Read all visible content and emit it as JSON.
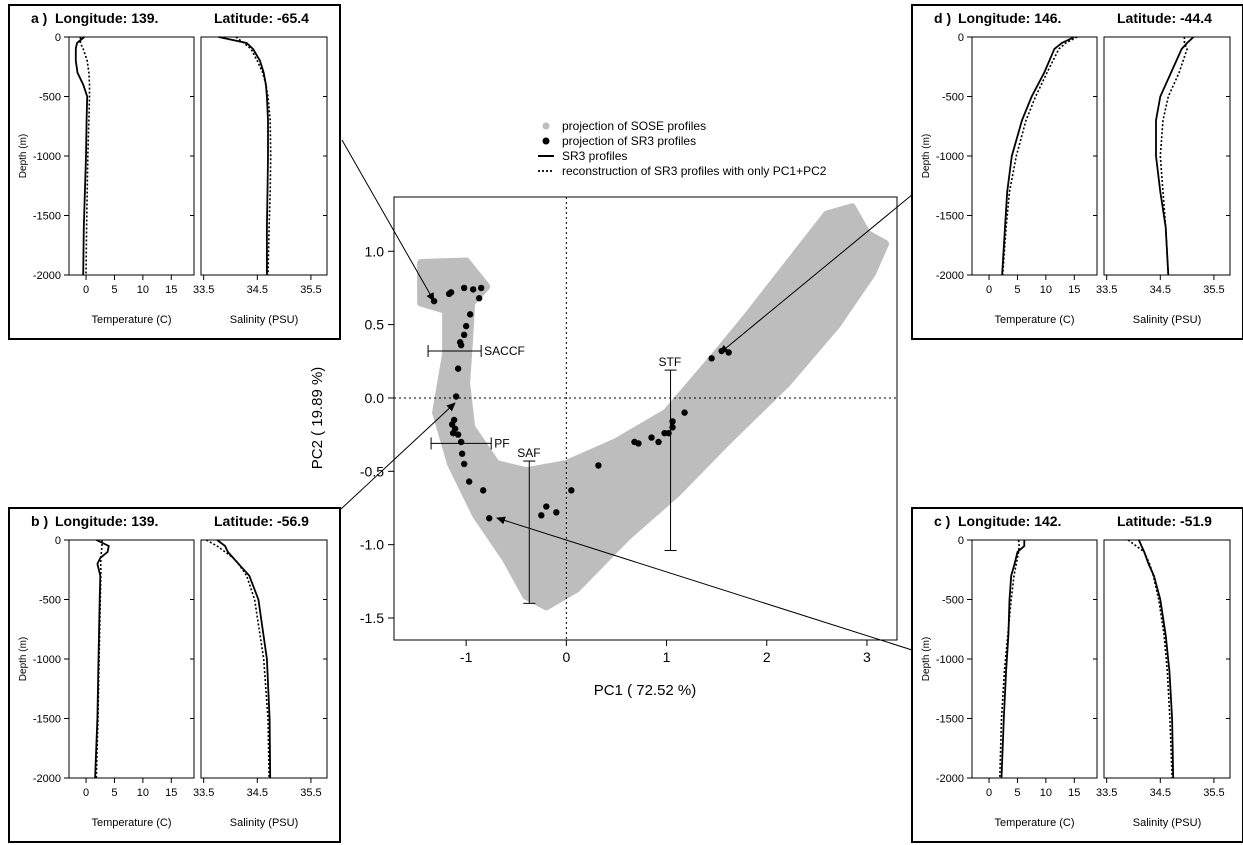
{
  "chart_data": [
    {
      "id": "main",
      "type": "scatter",
      "xlabel": "PC1 ( 72.52  %)",
      "ylabel": "PC2 ( 19.89  %)",
      "xlim": [
        -1.72,
        3.3
      ],
      "ylim": [
        -1.65,
        1.37
      ],
      "x_ticks": [
        -1,
        0,
        1,
        2,
        3
      ],
      "y_ticks": [
        1.0,
        0.5,
        0.0,
        -0.5,
        -1.0,
        -1.5
      ],
      "x_tick_labels": [
        "-1",
        "0",
        "1",
        "2",
        "3"
      ],
      "y_tick_labels": [
        "1.0",
        "0.5",
        "0.0",
        "-0.5",
        "-1.0",
        "-1.5"
      ],
      "reference_lines": {
        "x": 0,
        "y": 0,
        "style": "dotted"
      },
      "legend": {
        "placement": "above-plot",
        "entries": [
          {
            "label": "projection of SOSE profiles",
            "symbol": "gray-dot",
            "color": "#bdbdbd"
          },
          {
            "label": "projection of SR3 profiles",
            "symbol": "black-dot",
            "color": "#000000"
          },
          {
            "label": "SR3 profiles",
            "symbol": "solid-line"
          },
          {
            "label": "reconstruction of SR3 profiles with only PC1+PC2",
            "symbol": "dotted-line"
          }
        ]
      },
      "sose_cloud_outline": [
        [
          -1.45,
          0.92
        ],
        [
          -1.0,
          0.93
        ],
        [
          -0.8,
          0.76
        ],
        [
          -0.95,
          0.65
        ],
        [
          -0.97,
          0.4
        ],
        [
          -1.0,
          0.1
        ],
        [
          -0.95,
          -0.2
        ],
        [
          -0.7,
          -0.45
        ],
        [
          -0.4,
          -0.5
        ],
        [
          0.0,
          -0.45
        ],
        [
          0.5,
          -0.3
        ],
        [
          1.0,
          -0.1
        ],
        [
          1.5,
          0.3
        ],
        [
          1.8,
          0.55
        ],
        [
          2.2,
          0.9
        ],
        [
          2.6,
          1.25
        ],
        [
          2.85,
          1.3
        ],
        [
          3.0,
          1.12
        ],
        [
          3.18,
          1.05
        ],
        [
          3.05,
          0.85
        ],
        [
          2.7,
          0.5
        ],
        [
          2.2,
          0.1
        ],
        [
          1.6,
          -0.3
        ],
        [
          1.1,
          -0.65
        ],
        [
          0.6,
          -0.95
        ],
        [
          0.1,
          -1.3
        ],
        [
          -0.2,
          -1.42
        ],
        [
          -0.4,
          -1.35
        ],
        [
          -0.6,
          -1.1
        ],
        [
          -0.9,
          -0.8
        ],
        [
          -1.15,
          -0.45
        ],
        [
          -1.3,
          -0.1
        ],
        [
          -1.2,
          0.3
        ],
        [
          -1.2,
          0.6
        ],
        [
          -1.45,
          0.65
        ]
      ],
      "sr3_points": [
        [
          -1.32,
          0.66
        ],
        [
          -1.17,
          0.71
        ],
        [
          -1.15,
          0.72
        ],
        [
          -1.02,
          0.75
        ],
        [
          -0.93,
          0.74
        ],
        [
          -0.85,
          0.75
        ],
        [
          -0.87,
          0.68
        ],
        [
          -0.96,
          0.57
        ],
        [
          -1.0,
          0.49
        ],
        [
          -1.02,
          0.43
        ],
        [
          -1.05,
          0.36
        ],
        [
          -1.06,
          0.38
        ],
        [
          -1.08,
          0.2
        ],
        [
          -1.1,
          0.01
        ],
        [
          -1.12,
          -0.15
        ],
        [
          -1.14,
          -0.18
        ],
        [
          -1.11,
          -0.21
        ],
        [
          -1.13,
          -0.24
        ],
        [
          -1.08,
          -0.25
        ],
        [
          -1.05,
          -0.3
        ],
        [
          -1.04,
          -0.38
        ],
        [
          -1.02,
          -0.45
        ],
        [
          -0.97,
          -0.57
        ],
        [
          -0.83,
          -0.63
        ],
        [
          -0.77,
          -0.82
        ],
        [
          -0.25,
          -0.8
        ],
        [
          -0.2,
          -0.74
        ],
        [
          -0.1,
          -0.78
        ],
        [
          0.05,
          -0.63
        ],
        [
          0.32,
          -0.46
        ],
        [
          0.68,
          -0.3
        ],
        [
          0.72,
          -0.31
        ],
        [
          0.85,
          -0.27
        ],
        [
          0.92,
          -0.3
        ],
        [
          0.98,
          -0.24
        ],
        [
          1.02,
          -0.24
        ],
        [
          1.06,
          -0.2
        ],
        [
          1.06,
          -0.16
        ],
        [
          1.18,
          -0.1
        ],
        [
          1.45,
          0.27
        ],
        [
          1.55,
          0.32
        ],
        [
          1.62,
          0.31
        ]
      ],
      "fronts": [
        {
          "name": "SACCF",
          "orientation": "horizontal",
          "x": [
            -1.38,
            -0.85
          ],
          "y": 0.32
        },
        {
          "name": "PF",
          "orientation": "horizontal",
          "x": [
            -1.35,
            -0.75
          ],
          "y": -0.31
        },
        {
          "name": "SAF",
          "orientation": "vertical",
          "x": -0.37,
          "y": [
            -1.4,
            -0.43
          ]
        },
        {
          "name": "STF",
          "orientation": "vertical",
          "x": 1.04,
          "y": [
            -1.04,
            0.19
          ]
        }
      ]
    },
    {
      "id": "a",
      "type": "line",
      "panel_label": "a )",
      "title_longitude": "Longitude: 139.",
      "title_latitude": "Latitude: -65.4",
      "ylabel": "Depth (m)",
      "depth": [
        0,
        -50,
        -100,
        -200,
        -300,
        -400,
        -500,
        -700,
        -1000,
        -1300,
        -1600,
        -2000
      ],
      "temperature": {
        "xlabel": "Temperature (C)",
        "xlim": [
          -3,
          19
        ],
        "x_ticks": [
          0,
          5,
          10,
          15
        ],
        "x_tick_labels": [
          "0",
          "5",
          "10",
          "15"
        ],
        "observed": [
          -0.3,
          -1.6,
          -1.8,
          -1.8,
          -1.5,
          -0.5,
          0.2,
          0.1,
          0.0,
          -0.2,
          -0.4,
          -0.5
        ],
        "reconstructed": [
          -1.0,
          -1.0,
          -0.5,
          0.2,
          0.5,
          0.6,
          0.6,
          0.5,
          0.3,
          0.2,
          0.1,
          0.0
        ]
      },
      "salinity": {
        "xlabel": "Salinity (PSU)",
        "xlim": [
          33.45,
          35.8
        ],
        "x_ticks": [
          33.5,
          34.5,
          35.5
        ],
        "x_tick_labels": [
          "33.5",
          "34.5",
          "35.5"
        ],
        "observed": [
          33.78,
          34.3,
          34.42,
          34.55,
          34.62,
          34.66,
          34.68,
          34.7,
          34.7,
          34.69,
          34.68,
          34.68
        ],
        "reconstructed": [
          34.1,
          34.25,
          34.38,
          34.5,
          34.6,
          34.66,
          34.7,
          34.74,
          34.75,
          34.74,
          34.72,
          34.7
        ]
      }
    },
    {
      "id": "b",
      "type": "line",
      "panel_label": "b )",
      "title_longitude": "Longitude: 139.",
      "title_latitude": "Latitude: -56.9",
      "ylabel": "Depth (m)",
      "depth": [
        0,
        -50,
        -100,
        -150,
        -200,
        -300,
        -500,
        -1000,
        -1500,
        -2000
      ],
      "temperature": {
        "xlabel": "Temperature (C)",
        "xlim": [
          -3,
          19
        ],
        "x_ticks": [
          0,
          5,
          10,
          15
        ],
        "x_tick_labels": [
          "0",
          "5",
          "10",
          "15"
        ],
        "observed": [
          1.8,
          4.0,
          3.8,
          2.5,
          2.0,
          2.5,
          2.4,
          2.2,
          2.0,
          1.6
        ],
        "reconstructed": [
          2.8,
          2.8,
          2.7,
          2.6,
          2.6,
          2.6,
          2.5,
          2.3,
          2.1,
          1.8
        ]
      },
      "salinity": {
        "xlabel": "Salinity (PSU)",
        "xlim": [
          33.45,
          35.8
        ],
        "x_ticks": [
          33.5,
          34.5,
          35.5
        ],
        "x_tick_labels": [
          "33.5",
          "34.5",
          "35.5"
        ],
        "observed": [
          33.75,
          33.9,
          33.95,
          34.05,
          34.15,
          34.35,
          34.52,
          34.68,
          34.73,
          34.74
        ],
        "reconstructed": [
          33.55,
          33.75,
          33.9,
          34.05,
          34.15,
          34.3,
          34.45,
          34.62,
          34.7,
          34.72
        ]
      }
    },
    {
      "id": "c",
      "type": "line",
      "panel_label": "c )",
      "title_longitude": "Longitude: 142.",
      "title_latitude": "Latitude: -51.9",
      "ylabel": "Depth (m)",
      "depth": [
        0,
        -50,
        -100,
        -200,
        -300,
        -500,
        -800,
        -1100,
        -1500,
        -2000
      ],
      "temperature": {
        "xlabel": "Temperature (C)",
        "xlim": [
          -3,
          19
        ],
        "x_ticks": [
          0,
          5,
          10,
          15
        ],
        "x_tick_labels": [
          "0",
          "5",
          "10",
          "15"
        ],
        "observed": [
          6.2,
          6.2,
          5.0,
          4.5,
          3.9,
          3.6,
          3.4,
          3.0,
          2.6,
          2.2
        ],
        "reconstructed": [
          5.2,
          5.3,
          5.2,
          4.8,
          4.4,
          3.9,
          3.3,
          2.7,
          2.2,
          1.9
        ]
      },
      "salinity": {
        "xlabel": "Salinity (PSU)",
        "xlim": [
          33.45,
          35.8
        ],
        "x_ticks": [
          33.5,
          34.5,
          35.5
        ],
        "x_tick_labels": [
          "33.5",
          "34.5",
          "35.5"
        ],
        "observed": [
          34.1,
          34.15,
          34.2,
          34.28,
          34.38,
          34.5,
          34.6,
          34.67,
          34.72,
          34.74
        ],
        "reconstructed": [
          33.9,
          34.05,
          34.2,
          34.3,
          34.37,
          34.47,
          34.57,
          34.63,
          34.68,
          34.72
        ]
      }
    },
    {
      "id": "d",
      "type": "line",
      "panel_label": "d )",
      "title_longitude": "Longitude: 146.",
      "title_latitude": "Latitude: -44.4",
      "ylabel": "Depth (m)",
      "depth": [
        0,
        -50,
        -100,
        -300,
        -500,
        -700,
        -1000,
        -1300,
        -1600,
        -2000
      ],
      "temperature": {
        "xlabel": "Temperature (C)",
        "xlim": [
          -3,
          19
        ],
        "x_ticks": [
          0,
          5,
          10,
          15
        ],
        "x_tick_labels": [
          "0",
          "5",
          "10",
          "15"
        ],
        "observed": [
          15.0,
          12.8,
          11.5,
          9.7,
          7.5,
          5.8,
          4.0,
          3.2,
          2.8,
          2.3
        ],
        "reconstructed": [
          15.5,
          13.5,
          12.3,
          10.2,
          8.2,
          6.5,
          4.8,
          3.6,
          3.0,
          2.4
        ]
      },
      "salinity": {
        "xlabel": "Salinity (PSU)",
        "xlim": [
          33.45,
          35.8
        ],
        "x_ticks": [
          33.5,
          34.5,
          35.5
        ],
        "x_tick_labels": [
          "33.5",
          "34.5",
          "35.5"
        ],
        "observed": [
          35.12,
          35.0,
          34.9,
          34.7,
          34.5,
          34.42,
          34.42,
          34.5,
          34.6,
          34.65
        ],
        "reconstructed": [
          34.95,
          34.95,
          35.0,
          34.85,
          34.65,
          34.55,
          34.5,
          34.55,
          34.6,
          34.65
        ]
      }
    }
  ],
  "depth_axis": {
    "ylim": [
      -2000,
      0
    ],
    "ticks": [
      0,
      -500,
      -1000,
      -1500,
      -2000
    ],
    "tick_labels": [
      "0",
      "-500",
      "-1000",
      "-1500",
      "-2000"
    ]
  },
  "colors": {
    "sose": "#bdbdbd",
    "sr3": "#000000",
    "axis": "#000000"
  }
}
